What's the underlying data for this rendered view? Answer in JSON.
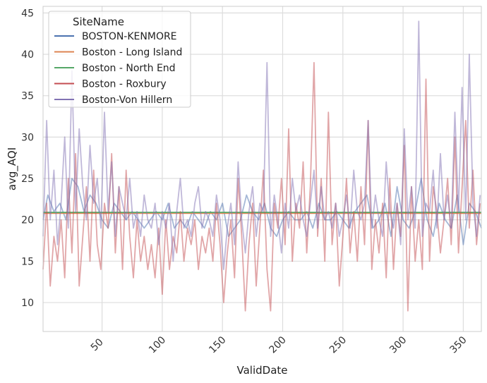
{
  "chart_data": {
    "type": "line",
    "xlabel": "ValidDate",
    "ylabel": "avg_AQI",
    "xlim": [
      1,
      365
    ],
    "ylim": [
      6.5,
      45.8
    ],
    "x_ticks": [
      50,
      100,
      150,
      200,
      250,
      300,
      350
    ],
    "y_ticks": [
      10,
      15,
      20,
      25,
      30,
      35,
      40,
      45
    ],
    "grid": true,
    "legend": {
      "title": "SiteName",
      "placement": "top-left"
    },
    "series": [
      {
        "name": "BOSTON-KENMORE",
        "color": "#4c72b0",
        "alpha": 0.5,
        "x": [
          1,
          5,
          10,
          15,
          20,
          25,
          30,
          35,
          40,
          45,
          50,
          55,
          60,
          65,
          70,
          75,
          80,
          85,
          90,
          95,
          100,
          105,
          110,
          115,
          120,
          125,
          130,
          135,
          140,
          145,
          150,
          155,
          160,
          165,
          170,
          175,
          180,
          185,
          190,
          195,
          200,
          205,
          210,
          215,
          220,
          225,
          230,
          235,
          240,
          245,
          250,
          255,
          260,
          265,
          270,
          275,
          280,
          285,
          290,
          295,
          300,
          305,
          310,
          315,
          320,
          325,
          330,
          335,
          340,
          345,
          350,
          355,
          360,
          365
        ],
        "y": [
          20,
          23,
          21,
          22,
          20,
          25,
          24,
          21,
          23,
          22,
          20,
          19,
          22,
          21,
          20,
          21,
          20,
          19,
          20,
          21,
          20,
          22,
          19,
          20,
          19,
          21,
          20,
          19,
          21,
          20,
          22,
          18,
          19,
          20,
          23,
          21,
          20,
          22,
          19,
          18,
          20,
          21,
          20,
          20,
          21,
          19,
          22,
          20,
          20,
          21,
          20,
          19,
          21,
          22,
          23,
          19,
          20,
          22,
          18,
          24,
          20,
          19,
          21,
          25,
          20,
          18,
          22,
          20,
          19,
          23,
          17,
          22,
          21,
          19
        ]
      },
      {
        "name": "Boston - Long Island",
        "color": "#dd8452",
        "alpha": 1.0,
        "x": [
          1,
          365
        ],
        "y": [
          20.8,
          20.8
        ]
      },
      {
        "name": "Boston - North End",
        "color": "#55a868",
        "alpha": 1.0,
        "x": [
          1,
          365
        ],
        "y": [
          20.9,
          20.9
        ]
      },
      {
        "name": "Boston - Roxbury",
        "color": "#c44e52",
        "alpha": 0.5,
        "x": [
          1,
          4,
          7,
          10,
          13,
          16,
          19,
          22,
          25,
          28,
          31,
          34,
          37,
          40,
          43,
          46,
          49,
          52,
          55,
          58,
          61,
          64,
          67,
          70,
          73,
          76,
          79,
          82,
          85,
          88,
          91,
          94,
          97,
          100,
          103,
          106,
          109,
          112,
          115,
          118,
          121,
          124,
          127,
          130,
          133,
          136,
          139,
          142,
          145,
          148,
          151,
          154,
          157,
          160,
          163,
          166,
          169,
          172,
          175,
          178,
          181,
          184,
          187,
          190,
          193,
          196,
          199,
          202,
          205,
          208,
          211,
          214,
          217,
          220,
          223,
          226,
          229,
          232,
          235,
          238,
          241,
          244,
          247,
          250,
          253,
          256,
          259,
          262,
          265,
          268,
          271,
          274,
          277,
          280,
          283,
          286,
          289,
          292,
          295,
          298,
          301,
          304,
          307,
          310,
          313,
          316,
          319,
          322,
          325,
          328,
          331,
          334,
          337,
          340,
          343,
          346,
          349,
          352,
          355,
          358,
          361,
          364
        ],
        "y": [
          14,
          22,
          12,
          18,
          15,
          20,
          13,
          25,
          16,
          28,
          12,
          18,
          24,
          15,
          26,
          17,
          14,
          22,
          19,
          28,
          16,
          24,
          14,
          26,
          18,
          13,
          20,
          15,
          18,
          14,
          17,
          13,
          19,
          11,
          20,
          14,
          18,
          16,
          21,
          15,
          19,
          17,
          20,
          14,
          18,
          16,
          19,
          15,
          22,
          17,
          10,
          16,
          20,
          13,
          25,
          18,
          9,
          17,
          22,
          12,
          19,
          26,
          14,
          9,
          22,
          19,
          25,
          17,
          31,
          15,
          22,
          19,
          27,
          16,
          24,
          39,
          18,
          25,
          15,
          33,
          17,
          22,
          12,
          18,
          25,
          16,
          21,
          15,
          24,
          17,
          32,
          14,
          20,
          16,
          22,
          13,
          25,
          14,
          22,
          18,
          29,
          9,
          24,
          15,
          20,
          14,
          37,
          15,
          24,
          21,
          16,
          20,
          25,
          17,
          30,
          16,
          24,
          32,
          19,
          26,
          17,
          22
        ]
      },
      {
        "name": "Boston-Von Hillern",
        "color": "#8172b3",
        "alpha": 0.5,
        "x": [
          1,
          4,
          7,
          10,
          13,
          16,
          19,
          22,
          25,
          28,
          31,
          34,
          37,
          40,
          43,
          46,
          49,
          52,
          55,
          58,
          61,
          64,
          67,
          70,
          73,
          76,
          79,
          82,
          85,
          88,
          91,
          94,
          97,
          100,
          103,
          106,
          109,
          112,
          115,
          118,
          121,
          124,
          127,
          130,
          133,
          136,
          139,
          142,
          145,
          148,
          151,
          154,
          157,
          160,
          163,
          166,
          169,
          172,
          175,
          178,
          181,
          184,
          187,
          190,
          193,
          196,
          199,
          202,
          205,
          208,
          211,
          214,
          217,
          220,
          223,
          226,
          229,
          232,
          235,
          238,
          241,
          244,
          247,
          250,
          253,
          256,
          259,
          262,
          265,
          268,
          271,
          274,
          277,
          280,
          283,
          286,
          289,
          292,
          295,
          298,
          301,
          304,
          307,
          310,
          313,
          316,
          319,
          322,
          325,
          328,
          331,
          334,
          337,
          340,
          343,
          346,
          349,
          352,
          355,
          358,
          361,
          364
        ],
        "y": [
          18,
          32,
          20,
          26,
          17,
          22,
          30,
          19,
          38,
          21,
          31,
          24,
          20,
          29,
          22,
          25,
          19,
          33,
          21,
          27,
          18,
          24,
          22,
          20,
          25,
          19,
          21,
          18,
          23,
          20,
          19,
          22,
          17,
          21,
          19,
          22,
          15,
          21,
          25,
          19,
          20,
          18,
          22,
          24,
          19,
          21,
          20,
          18,
          23,
          20,
          14,
          19,
          22,
          17,
          27,
          20,
          16,
          21,
          24,
          18,
          22,
          21,
          39,
          18,
          23,
          20,
          16,
          22,
          19,
          25,
          21,
          23,
          20,
          18,
          22,
          26,
          19,
          24,
          20,
          21,
          19,
          22,
          18,
          20,
          23,
          19,
          26,
          21,
          20,
          22,
          32,
          19,
          23,
          20,
          18,
          27,
          21,
          19,
          22,
          17,
          31,
          20,
          24,
          19,
          44,
          18,
          22,
          21,
          26,
          19,
          28,
          20,
          23,
          19,
          33,
          21,
          36,
          20,
          40,
          22,
          18,
          23
        ]
      }
    ]
  }
}
